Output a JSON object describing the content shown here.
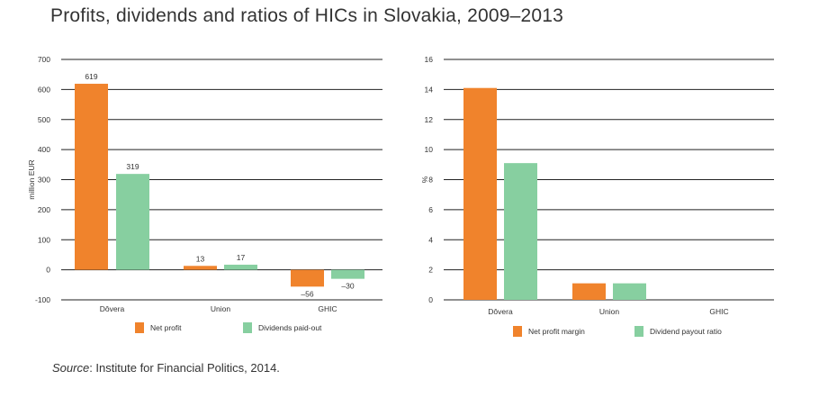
{
  "title": "Profits, dividends and ratios of HICs in Slovakia, 2009–2013",
  "source": {
    "label": "Source",
    "text": ": Institute for Financial Politics, 2014."
  },
  "colors": {
    "series1": "#F0832C",
    "series2": "#87CFA0"
  },
  "chart_data": [
    {
      "type": "bar",
      "categories": [
        "Dôvera",
        "Union",
        "GHIC"
      ],
      "series": [
        {
          "name": "Net profit",
          "values": [
            619,
            13,
            -56
          ],
          "labels": [
            "619",
            "13",
            "–56"
          ]
        },
        {
          "name": "Dividends paid-out",
          "values": [
            319,
            17,
            -30
          ],
          "labels": [
            "319",
            "17",
            "–30"
          ]
        }
      ],
      "xlabel": "",
      "ylabel": "million EUR",
      "ylim": [
        -100,
        700
      ],
      "yticks": [
        -100,
        0,
        100,
        200,
        300,
        400,
        500,
        600,
        700
      ],
      "grid": true,
      "legend": "bottom"
    },
    {
      "type": "bar",
      "categories": [
        "Dôvera",
        "Union",
        "GHIC"
      ],
      "series": [
        {
          "name": "Net profit margin",
          "values": [
            14.1,
            1.1,
            0
          ]
        },
        {
          "name": "Dividend payout ratio",
          "values": [
            9.1,
            1.1,
            0
          ]
        }
      ],
      "xlabel": "",
      "ylabel": "%",
      "ylim": [
        0,
        16
      ],
      "yticks": [
        0,
        2,
        4,
        6,
        8,
        10,
        12,
        14,
        16
      ],
      "grid": true,
      "legend": "bottom"
    }
  ]
}
